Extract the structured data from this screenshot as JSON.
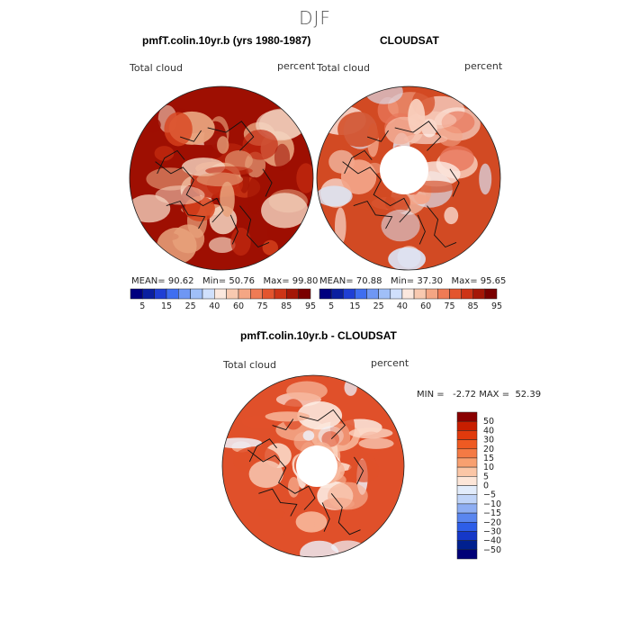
{
  "figure": {
    "title": "DJF"
  },
  "panels": [
    {
      "title": "pmfT.colin.10yr.b (yrs 1980-1987)",
      "left_label": "Total cloud",
      "right_label": "percent",
      "mean_label": "MEAN=",
      "mean": "90.62",
      "min_label": "Min=",
      "min": "50.76",
      "max_label": "Max=",
      "max": "99.80"
    },
    {
      "title": "CLOUDSAT",
      "left_label": "Total cloud",
      "right_label": "percent",
      "mean_label": "MEAN=",
      "mean": "70.88",
      "min_label": "Min=",
      "min": "37.30",
      "max_label": "Max=",
      "max": "95.65"
    },
    {
      "title": "pmfT.colin.10yr.b - CLOUDSAT",
      "left_label": "Total cloud",
      "right_label": "percent",
      "minmax_text": "MIN =   -2.72 MAX =  52.39"
    }
  ],
  "colorbar_abs": {
    "labels": [
      "5",
      "15",
      "25",
      "40",
      "60",
      "75",
      "85",
      "95"
    ],
    "colors": [
      "#00007f",
      "#0a1fa0",
      "#1f3fd4",
      "#3f6ef0",
      "#6f97f4",
      "#a0bff8",
      "#d0e0fc",
      "#fbe8de",
      "#f8c9b0",
      "#f4a684",
      "#ef7b55",
      "#e3552e",
      "#cd3416",
      "#a41707",
      "#7a0000"
    ]
  },
  "colorbar_diff": {
    "labels": [
      "50",
      "40",
      "30",
      "20",
      "15",
      "10",
      "5",
      "0",
      "−5",
      "−10",
      "−15",
      "−20",
      "−30",
      "−40",
      "−50"
    ],
    "colors": [
      "#8a0000",
      "#c81e00",
      "#e13a0c",
      "#ee5a22",
      "#f47a44",
      "#f8a070",
      "#fbc6a6",
      "#fde6d8",
      "#e2ecfb",
      "#c0d4f8",
      "#8eaef3",
      "#5a86ef",
      "#2e5ee8",
      "#1538c8",
      "#00208f",
      "#000077"
    ]
  },
  "map_colors": {
    "model": [
      "#9e0f02",
      "#c22a10",
      "#d8431d",
      "#e8a27c",
      "#f4d4c0"
    ],
    "cloudsat": [
      "#d24a23",
      "#e8765a",
      "#f3a589",
      "#f9cfbd",
      "#fdebe3",
      "#dbe6f8"
    ],
    "diff": [
      "#e0502a",
      "#ee8462",
      "#f6b396",
      "#fbd8c6",
      "#fdf0e8",
      "#eef2fb"
    ]
  }
}
